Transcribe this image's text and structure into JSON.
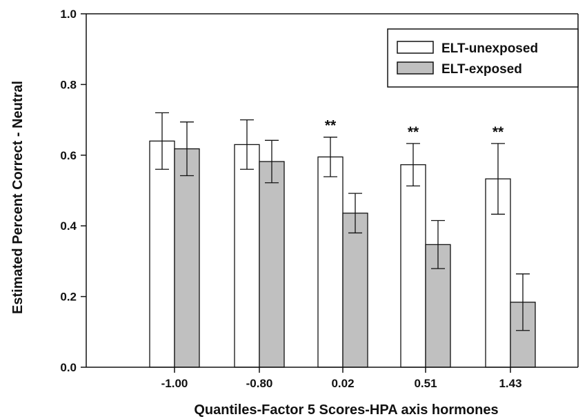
{
  "chart_data": {
    "type": "bar",
    "title": "",
    "xlabel": "Quantiles-Factor 5 Scores-HPA axis hormones",
    "ylabel": "Estimated Percent Correct - Neutral",
    "categories": [
      "-1.00",
      "-0.80",
      "0.02",
      "0.51",
      "1.43"
    ],
    "ylim": [
      0,
      1.0
    ],
    "yticks": [
      "0.0",
      "0.2",
      "0.4",
      "0.6",
      "0.8",
      "1.0"
    ],
    "grid": false,
    "legend_position": "top-right",
    "series": [
      {
        "name": "ELT-unexposed",
        "color": "#ffffff",
        "values": [
          0.64,
          0.63,
          0.595,
          0.573,
          0.533
        ],
        "error": [
          0.08,
          0.07,
          0.056,
          0.06,
          0.1
        ]
      },
      {
        "name": "ELT-exposed",
        "color": "#c0c0c0",
        "values": [
          0.618,
          0.582,
          0.436,
          0.347,
          0.184
        ],
        "error": [
          0.076,
          0.06,
          0.056,
          0.068,
          0.08
        ]
      }
    ],
    "annotations": [
      "",
      "",
      "**",
      "**",
      "**"
    ]
  }
}
